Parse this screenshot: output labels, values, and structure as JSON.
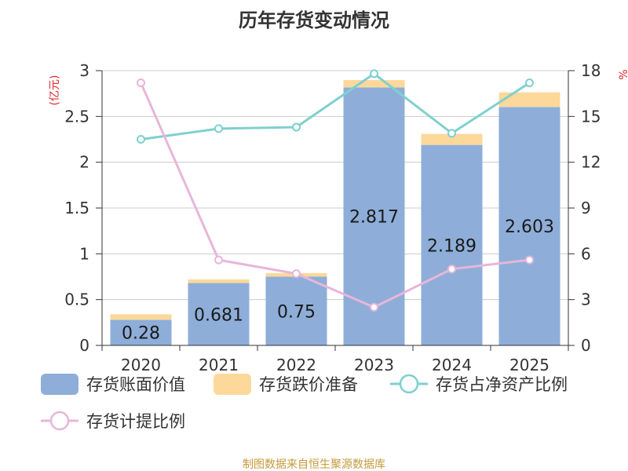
{
  "chart_data": {
    "type": "bar",
    "title": "历年存货变动情况",
    "categories": [
      "2020",
      "2021",
      "2022",
      "2023",
      "2024",
      "2025"
    ],
    "y_left": {
      "unit": "(亿元)",
      "ylim": [
        0,
        3
      ],
      "ticks": [
        "0",
        "0.5",
        "1",
        "1.5",
        "2",
        "2.5",
        "3"
      ]
    },
    "y_right": {
      "unit": "%",
      "ylim": [
        0,
        18
      ],
      "ticks": [
        "0",
        "3",
        "6",
        "9",
        "12",
        "15",
        "18"
      ]
    },
    "grid": true,
    "legend_position": "bottom",
    "series": [
      {
        "name": "存货账面价值",
        "kind": "bar",
        "axis": "left",
        "color": "#8eaed9",
        "values": [
          0.28,
          0.681,
          0.75,
          2.817,
          2.189,
          2.603
        ],
        "labels": [
          "0.28",
          "0.681",
          "0.75",
          "2.817",
          "2.189",
          "2.603"
        ]
      },
      {
        "name": "存货跌价准备",
        "kind": "bar-stacked",
        "axis": "left",
        "color": "#fdd89b",
        "values": [
          0.06,
          0.04,
          0.04,
          0.08,
          0.12,
          0.16
        ]
      },
      {
        "name": "存货占净资产比例",
        "kind": "line",
        "axis": "right",
        "color": "#7fd0cf",
        "values": [
          13.5,
          14.2,
          14.3,
          17.8,
          13.9,
          17.2
        ]
      },
      {
        "name": "存货计提比例",
        "kind": "line",
        "axis": "right",
        "color": "#e7b6da",
        "values": [
          17.2,
          5.6,
          4.7,
          2.5,
          5.0,
          5.6
        ]
      }
    ]
  },
  "footer": {
    "source": "制图数据来自恒生聚源数据库"
  }
}
